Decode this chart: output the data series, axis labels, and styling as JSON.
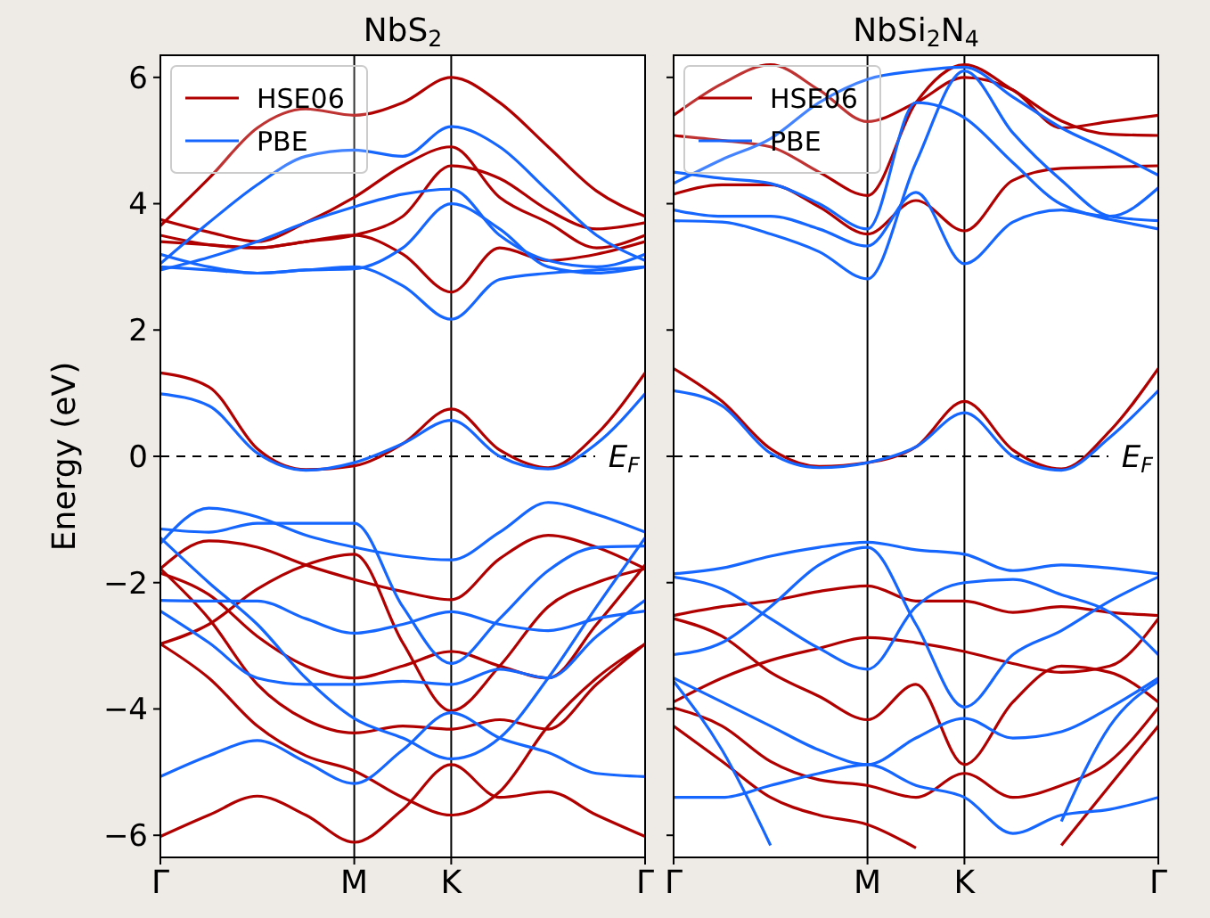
{
  "chart_data": [
    {
      "type": "line",
      "title": "NbS$_{2}$",
      "ylabel": "Energy (eV)",
      "legend": "top left",
      "categories": [
        "Γ",
        null,
        null,
        null,
        "M",
        null,
        "K",
        null,
        null,
        null,
        "Γ"
      ],
      "ylim": [
        -6.35,
        6.35
      ],
      "yticks": [
        -6,
        -4,
        -2,
        0,
        2,
        4,
        6
      ],
      "ref_lines": [
        {
          "axis": "x",
          "value": "M",
          "color": "#000000"
        },
        {
          "axis": "x",
          "value": "K",
          "color": "#000000"
        },
        {
          "axis": "y",
          "value": 0,
          "label": "E$_{F}$",
          "color": "#000000",
          "line_style": "dashed"
        }
      ],
      "series": [
        {
          "name": "HSE06",
          "color": "#b00000",
          "values": [
            3.65,
            4.4,
            5.2,
            5.5,
            5.4,
            5.6,
            6.0,
            5.6,
            4.9,
            4.2,
            3.8
          ]
        },
        {
          "color": "#b00000",
          "values": [
            3.75,
            3.55,
            3.4,
            3.7,
            4.1,
            4.6,
            4.9,
            4.1,
            3.7,
            3.3,
            3.5
          ]
        },
        {
          "color": "#b00000",
          "values": [
            3.5,
            3.35,
            3.3,
            3.4,
            3.5,
            3.8,
            4.6,
            4.4,
            3.9,
            3.6,
            3.7
          ]
        },
        {
          "color": "#b00000",
          "values": [
            3.4,
            3.35,
            3.3,
            3.4,
            3.5,
            3.2,
            2.6,
            3.3,
            3.1,
            3.2,
            3.4
          ]
        },
        {
          "color": "#b00000",
          "values": [
            1.32,
            1.1,
            0.12,
            -0.21,
            -0.15,
            0.2,
            0.75,
            0.1,
            -0.18,
            0.35,
            1.32
          ]
        },
        {
          "color": "#b00000",
          "values": [
            -1.78,
            -1.34,
            -1.44,
            -1.72,
            -1.95,
            -2.14,
            -2.27,
            -1.62,
            -1.25,
            -1.44,
            -1.78
          ]
        },
        {
          "color": "#b00000",
          "values": [
            -2.97,
            -2.66,
            -2.1,
            -1.72,
            -1.55,
            -2.95,
            -4.03,
            -3.32,
            -2.38,
            -2.0,
            -1.78
          ]
        },
        {
          "color": "#b00000",
          "values": [
            -1.85,
            -2.19,
            -2.85,
            -3.32,
            -3.51,
            -3.32,
            -3.09,
            -3.32,
            -3.51,
            -2.66,
            -1.72
          ]
        },
        {
          "color": "#b00000",
          "values": [
            -1.78,
            -2.57,
            -3.61,
            -4.17,
            -4.38,
            -4.27,
            -4.32,
            -4.17,
            -4.32,
            -3.61,
            -2.97
          ]
        },
        {
          "color": "#b00000",
          "values": [
            -2.97,
            -3.51,
            -4.27,
            -4.74,
            -4.98,
            -5.4,
            -5.68,
            -5.31,
            -4.27,
            -3.51,
            -2.97
          ]
        },
        {
          "color": "#b00000",
          "values": [
            -6.02,
            -5.68,
            -5.38,
            -5.68,
            -6.11,
            -5.59,
            -4.88,
            -5.4,
            -5.31,
            -5.68,
            -6.02
          ]
        },
        {
          "name": "PBE",
          "color": "#1565ff",
          "values": [
            3.05,
            3.7,
            4.3,
            4.75,
            4.85,
            4.75,
            5.22,
            4.9,
            4.2,
            3.5,
            3.1
          ]
        },
        {
          "color": "#1565ff",
          "values": [
            2.95,
            3.15,
            3.4,
            3.7,
            3.95,
            4.15,
            4.23,
            3.5,
            3.1,
            3.0,
            3.2
          ]
        },
        {
          "color": "#1565ff",
          "values": [
            3.2,
            3.0,
            2.9,
            2.95,
            2.97,
            3.3,
            4.0,
            3.6,
            3.0,
            2.9,
            3.0
          ]
        },
        {
          "color": "#1565ff",
          "values": [
            3.0,
            2.95,
            2.9,
            2.95,
            3.0,
            2.7,
            2.17,
            2.8,
            2.9,
            2.95,
            3.0
          ]
        },
        {
          "color": "#1565ff",
          "values": [
            0.99,
            0.8,
            0.05,
            -0.22,
            -0.1,
            0.2,
            0.57,
            0.0,
            -0.2,
            0.2,
            0.99
          ]
        },
        {
          "color": "#1565ff",
          "values": [
            -1.38,
            -0.82,
            -0.96,
            -1.25,
            -1.44,
            -1.58,
            -1.64,
            -1.2,
            -0.73,
            -0.92,
            -1.2
          ]
        },
        {
          "color": "#1565ff",
          "values": [
            -1.15,
            -1.2,
            -1.06,
            -1.06,
            -1.06,
            -2.38,
            -3.28,
            -2.57,
            -1.81,
            -1.44,
            -1.42
          ]
        },
        {
          "color": "#1565ff",
          "values": [
            -2.28,
            -2.29,
            -2.29,
            -2.57,
            -2.8,
            -2.66,
            -2.46,
            -2.66,
            -2.76,
            -2.57,
            -2.45
          ]
        },
        {
          "color": "#1565ff",
          "values": [
            -2.45,
            -2.95,
            -3.51,
            -3.61,
            -3.61,
            -3.56,
            -3.61,
            -3.37,
            -3.51,
            -2.85,
            -2.28
          ]
        },
        {
          "color": "#1565ff",
          "values": [
            -1.29,
            -2.0,
            -2.66,
            -3.51,
            -4.15,
            -4.46,
            -4.79,
            -4.46,
            -3.51,
            -2.38,
            -1.29
          ]
        },
        {
          "color": "#1565ff",
          "values": [
            -5.07,
            -4.74,
            -4.5,
            -4.84,
            -5.18,
            -4.65,
            -4.06,
            -4.46,
            -4.69,
            -5.02,
            -5.07
          ]
        }
      ]
    },
    {
      "type": "line",
      "title": "NbSi$_{2}$N$_{4}$",
      "legend": "top left",
      "tick_labels": "x",
      "categories": [
        "Γ",
        null,
        null,
        null,
        "M",
        null,
        "K",
        null,
        null,
        null,
        "Γ"
      ],
      "ylim": [
        -6.35,
        6.35
      ],
      "yticks": [
        -6,
        -4,
        -2,
        0,
        2,
        4,
        6
      ],
      "ref_lines": [
        {
          "axis": "x",
          "value": "M",
          "color": "#000000"
        },
        {
          "axis": "x",
          "value": "K",
          "color": "#000000"
        },
        {
          "axis": "y",
          "value": 0,
          "label": "E$_{F}$",
          "color": "#000000",
          "line_style": "dashed"
        }
      ],
      "series": [
        {
          "name": "HSE06",
          "color": "#b00000",
          "values": [
            4.15,
            4.3,
            4.3,
            3.95,
            3.52,
            4.05,
            3.57,
            4.37,
            4.56,
            4.58,
            4.6
          ]
        },
        {
          "color": "#b00000",
          "values": [
            5.08,
            5.0,
            4.9,
            4.5,
            4.13,
            5.6,
            6.2,
            5.8,
            5.31,
            5.1,
            5.08
          ]
        },
        {
          "color": "#b00000",
          "values": [
            5.4,
            5.9,
            6.2,
            5.8,
            5.3,
            5.6,
            6.0,
            5.8,
            5.2,
            5.3,
            5.4
          ]
        },
        {
          "color": "#b00000",
          "values": [
            1.39,
            0.87,
            0.12,
            -0.16,
            -0.1,
            0.15,
            0.87,
            0.1,
            -0.2,
            0.4,
            1.39
          ]
        },
        {
          "color": "#b00000",
          "values": [
            -2.52,
            -2.38,
            -2.29,
            -2.14,
            -2.05,
            -2.29,
            -2.29,
            -2.47,
            -2.38,
            -2.47,
            -2.52
          ]
        },
        {
          "color": "#b00000",
          "values": [
            -3.89,
            -3.51,
            -3.23,
            -3.04,
            -2.87,
            -2.95,
            -3.09,
            -3.28,
            -3.42,
            -3.32,
            -2.57
          ]
        },
        {
          "color": "#b00000",
          "values": [
            -2.57,
            -2.85,
            -3.42,
            -3.8,
            -4.17,
            -3.61,
            -4.88,
            -3.89,
            -3.32,
            -3.42,
            -3.89
          ]
        },
        {
          "color": "#b00000",
          "values": [
            -3.98,
            -4.27,
            -4.83,
            -5.12,
            -5.21,
            -5.4,
            -5.02,
            -5.4,
            -5.21,
            -4.83,
            -3.98
          ]
        },
        {
          "color": "#b00000",
          "values": [
            -4.27,
            -4.83,
            -5.4,
            -5.68,
            -5.83,
            -6.2,
            null,
            null,
            -6.16,
            -5.21,
            -4.27
          ]
        },
        {
          "name": "PBE",
          "color": "#1565ff",
          "values": [
            3.73,
            3.71,
            3.52,
            3.24,
            2.81,
            4.65,
            6.1,
            5.12,
            4.37,
            3.8,
            3.73
          ]
        },
        {
          "color": "#1565ff",
          "values": [
            3.9,
            3.8,
            3.8,
            3.6,
            3.33,
            4.18,
            3.05,
            3.71,
            3.9,
            3.75,
            3.6
          ]
        },
        {
          "color": "#1565ff",
          "values": [
            4.5,
            4.4,
            4.32,
            4.0,
            3.6,
            5.6,
            5.36,
            4.65,
            3.99,
            3.8,
            4.25
          ]
        },
        {
          "color": "#1565ff",
          "values": [
            4.32,
            4.7,
            5.03,
            5.6,
            5.97,
            6.1,
            6.16,
            5.69,
            5.2,
            4.84,
            4.45
          ]
        },
        {
          "color": "#1565ff",
          "values": [
            1.04,
            0.8,
            0.05,
            -0.18,
            -0.1,
            0.15,
            0.69,
            0.0,
            -0.22,
            0.3,
            1.04
          ]
        },
        {
          "color": "#1565ff",
          "values": [
            -1.86,
            -1.77,
            -1.58,
            -1.44,
            -1.36,
            -1.48,
            -1.55,
            -1.81,
            -1.72,
            -1.77,
            -1.86
          ]
        },
        {
          "color": "#1565ff",
          "values": [
            -1.91,
            -2.1,
            -2.57,
            -3.04,
            -3.37,
            -2.38,
            -2.0,
            -1.95,
            -2.19,
            -2.47,
            -3.14
          ]
        },
        {
          "color": "#1565ff",
          "values": [
            -3.14,
            -2.95,
            -2.38,
            -1.72,
            -1.44,
            -2.66,
            -3.97,
            -3.14,
            -2.76,
            -2.29,
            -1.91
          ]
        },
        {
          "color": "#1565ff",
          "values": [
            -3.51,
            -3.89,
            -4.27,
            -4.65,
            -4.88,
            -4.46,
            -4.15,
            -4.46,
            -4.36,
            -3.98,
            -3.51
          ]
        },
        {
          "color": "#1565ff",
          "values": [
            -5.4,
            -5.4,
            -5.21,
            -5.02,
            -4.88,
            -5.21,
            -5.4,
            -5.97,
            -5.68,
            -5.59,
            -5.4
          ]
        },
        {
          "color": "#1565ff",
          "values": [
            -3.56,
            -4.65,
            -6.16,
            null,
            null,
            null,
            null,
            null,
            -5.78,
            -4.27,
            -3.56
          ]
        }
      ]
    }
  ]
}
